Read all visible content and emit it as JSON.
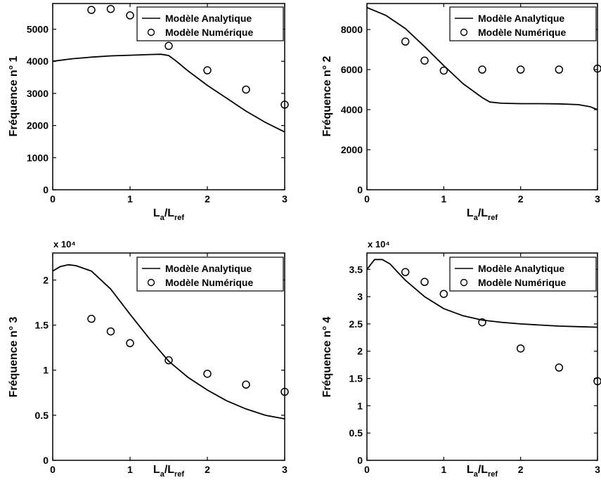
{
  "chart_data": [
    {
      "type": "line",
      "ylabel": "Fréquence n° 1",
      "xlabel": {
        "main": "L",
        "sub1": "a",
        "mid": "/L",
        "sub2": "ref"
      },
      "exponent": "",
      "xlim": [
        0,
        3
      ],
      "ylim": [
        0,
        5800
      ],
      "xticks": [
        0,
        1,
        2,
        3
      ],
      "yticks": [
        0,
        1000,
        2000,
        3000,
        4000,
        5000
      ],
      "ytick_labels": [
        "0",
        "1000",
        "2000",
        "3000",
        "4000",
        "5000"
      ],
      "legend": {
        "position": "top-right",
        "entries": [
          "Modèle Analytique",
          "Modèle Numérique"
        ]
      },
      "series": [
        {
          "name": "Modèle Analytique",
          "style": "line",
          "x": [
            0,
            0.25,
            0.5,
            0.75,
            1.0,
            1.25,
            1.4,
            1.5,
            1.6,
            1.75,
            2.0,
            2.25,
            2.5,
            2.75,
            3.0
          ],
          "y": [
            4000,
            4080,
            4130,
            4170,
            4190,
            4210,
            4220,
            4180,
            4000,
            3700,
            3250,
            2850,
            2450,
            2100,
            1800
          ]
        },
        {
          "name": "Modèle Numérique",
          "style": "marker",
          "x": [
            0.5,
            0.75,
            1.0,
            1.5,
            2.0,
            2.5,
            3.0
          ],
          "y": [
            5600,
            5630,
            5430,
            4480,
            3720,
            3120,
            2650
          ]
        }
      ]
    },
    {
      "type": "line",
      "ylabel": "Fréquence n° 2",
      "xlabel": {
        "main": "L",
        "sub1": "a",
        "mid": "/L",
        "sub2": "ref"
      },
      "exponent": "",
      "xlim": [
        0,
        3
      ],
      "ylim": [
        0,
        9300
      ],
      "xticks": [
        0,
        1,
        2,
        3
      ],
      "yticks": [
        0,
        2000,
        4000,
        6000,
        8000
      ],
      "ytick_labels": [
        "0",
        "2000",
        "4000",
        "6000",
        "8000"
      ],
      "legend": {
        "position": "top-right",
        "entries": [
          "Modèle Analytique",
          "Modèle Numérique"
        ]
      },
      "series": [
        {
          "name": "Modèle Analytique",
          "style": "line",
          "x": [
            0,
            0.25,
            0.5,
            0.75,
            1.0,
            1.25,
            1.5,
            1.6,
            1.75,
            2.0,
            2.25,
            2.5,
            2.75,
            2.9,
            3.0
          ],
          "y": [
            9100,
            8700,
            8050,
            7150,
            6200,
            5300,
            4600,
            4380,
            4320,
            4300,
            4300,
            4290,
            4250,
            4150,
            4000
          ]
        },
        {
          "name": "Modèle Numérique",
          "style": "marker",
          "x": [
            0.5,
            0.75,
            1.0,
            1.5,
            2.0,
            2.5,
            3.0
          ],
          "y": [
            7400,
            6450,
            5950,
            6000,
            6000,
            6000,
            6050
          ]
        }
      ]
    },
    {
      "type": "line",
      "ylabel": "Fréquence n° 3",
      "xlabel": {
        "main": "L",
        "sub1": "a",
        "mid": "/L",
        "sub2": "ref"
      },
      "exponent": "x 10⁴",
      "xlim": [
        0,
        3
      ],
      "ylim": [
        0,
        2.3
      ],
      "xticks": [
        0,
        1,
        2,
        3
      ],
      "yticks": [
        0,
        0.5,
        1,
        1.5,
        2
      ],
      "ytick_labels": [
        "0",
        "0.5",
        "1",
        "1.5",
        "2"
      ],
      "legend": {
        "position": "top-right",
        "entries": [
          "Modèle Analytique",
          "Modèle Numérique"
        ]
      },
      "series": [
        {
          "name": "Modèle Analytique",
          "style": "line",
          "x": [
            0,
            0.1,
            0.2,
            0.3,
            0.5,
            0.75,
            1.0,
            1.25,
            1.5,
            1.75,
            2.0,
            2.25,
            2.5,
            2.75,
            3.0
          ],
          "y": [
            2.1,
            2.15,
            2.17,
            2.16,
            2.1,
            1.9,
            1.62,
            1.35,
            1.1,
            0.92,
            0.78,
            0.66,
            0.57,
            0.5,
            0.46
          ]
        },
        {
          "name": "Modèle Numérique",
          "style": "marker",
          "x": [
            0.5,
            0.75,
            1.0,
            1.5,
            2.0,
            2.5,
            3.0
          ],
          "y": [
            1.57,
            1.43,
            1.3,
            1.11,
            0.96,
            0.84,
            0.76
          ]
        }
      ]
    },
    {
      "type": "line",
      "ylabel": "Fréquence n° 4",
      "xlabel": {
        "main": "L",
        "sub1": "a",
        "mid": "/L",
        "sub2": "ref"
      },
      "exponent": "x 10⁴",
      "xlim": [
        0,
        3
      ],
      "ylim": [
        0,
        3.8
      ],
      "xticks": [
        0,
        1,
        2,
        3
      ],
      "yticks": [
        0,
        0.5,
        1,
        1.5,
        2,
        2.5,
        3,
        3.5
      ],
      "ytick_labels": [
        "0",
        "0.5",
        "1",
        "1.5",
        "2",
        "2.5",
        "3",
        "3.5"
      ],
      "legend": {
        "position": "top-right",
        "entries": [
          "Modèle Analytique",
          "Modèle Numérique"
        ]
      },
      "series": [
        {
          "name": "Modèle Analytique",
          "style": "line",
          "x": [
            0,
            0.1,
            0.2,
            0.3,
            0.4,
            0.5,
            0.75,
            1.0,
            1.25,
            1.5,
            1.75,
            2.0,
            2.25,
            2.5,
            2.75,
            3.0
          ],
          "y": [
            3.5,
            3.68,
            3.68,
            3.6,
            3.45,
            3.3,
            3.0,
            2.78,
            2.65,
            2.57,
            2.53,
            2.5,
            2.48,
            2.46,
            2.45,
            2.44
          ]
        },
        {
          "name": "Modèle Numérique",
          "style": "marker",
          "x": [
            0.5,
            0.75,
            1.0,
            1.5,
            2.0,
            2.5,
            3.0
          ],
          "y": [
            3.45,
            3.27,
            3.05,
            2.53,
            2.05,
            1.7,
            1.45
          ]
        }
      ]
    }
  ]
}
